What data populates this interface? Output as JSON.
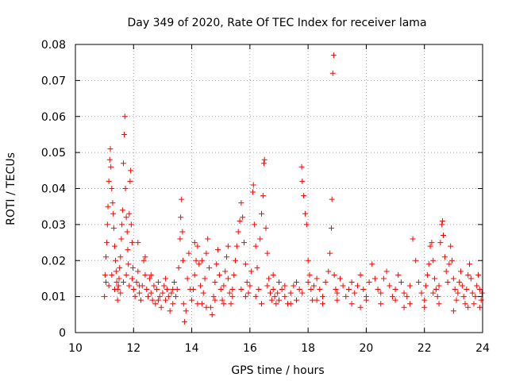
{
  "chart_data": {
    "type": "scatter",
    "title": "Day 349 of 2020, Rate Of TEC Index for receiver lama",
    "xlabel": "GPS time / hours",
    "ylabel": "ROTI / TECUs",
    "xlim": [
      10,
      24
    ],
    "ylim": [
      0,
      0.08
    ],
    "xticks": [
      10,
      12,
      14,
      16,
      18,
      20,
      22,
      24
    ],
    "xtick_labels": [
      "10",
      "12",
      "14",
      "16",
      "18",
      "20",
      "22",
      "24"
    ],
    "yticks": [
      0,
      0.01,
      0.02,
      0.03,
      0.04,
      0.05,
      0.06,
      0.07,
      0.08
    ],
    "ytick_labels": [
      "0",
      "0.01",
      "0.02",
      "0.03",
      "0.04",
      "0.05",
      "0.06",
      "0.07",
      "0.08"
    ],
    "grid": true,
    "marker": "+",
    "marker_color": "#ff0000",
    "series": [
      {
        "name": "ROTI",
        "points": [
          [
            11.0,
            0.01
          ],
          [
            11.02,
            0.016
          ],
          [
            11.05,
            0.021
          ],
          [
            11.08,
            0.025
          ],
          [
            11.1,
            0.03
          ],
          [
            11.12,
            0.035
          ],
          [
            11.15,
            0.042
          ],
          [
            11.18,
            0.048
          ],
          [
            11.2,
            0.051
          ],
          [
            11.22,
            0.046
          ],
          [
            11.25,
            0.04
          ],
          [
            11.28,
            0.036
          ],
          [
            11.3,
            0.033
          ],
          [
            11.32,
            0.029
          ],
          [
            11.35,
            0.024
          ],
          [
            11.38,
            0.02
          ],
          [
            11.4,
            0.017
          ],
          [
            11.42,
            0.014
          ],
          [
            11.45,
            0.012
          ],
          [
            11.48,
            0.013
          ],
          [
            11.5,
            0.015
          ],
          [
            11.52,
            0.018
          ],
          [
            11.55,
            0.021
          ],
          [
            11.58,
            0.026
          ],
          [
            11.6,
            0.03
          ],
          [
            11.62,
            0.034
          ],
          [
            11.65,
            0.047
          ],
          [
            11.68,
            0.055
          ],
          [
            11.7,
            0.06
          ],
          [
            11.72,
            0.04
          ],
          [
            11.75,
            0.032
          ],
          [
            11.78,
            0.028
          ],
          [
            11.8,
            0.023
          ],
          [
            11.82,
            0.019
          ],
          [
            11.85,
            0.033
          ],
          [
            11.88,
            0.042
          ],
          [
            11.9,
            0.045
          ],
          [
            11.92,
            0.03
          ],
          [
            11.95,
            0.025
          ],
          [
            11.98,
            0.018
          ],
          [
            11.05,
            0.014
          ],
          [
            11.15,
            0.013
          ],
          [
            11.25,
            0.016
          ],
          [
            11.35,
            0.012
          ],
          [
            11.45,
            0.009
          ],
          [
            11.55,
            0.011
          ],
          [
            11.65,
            0.014
          ],
          [
            11.75,
            0.016
          ],
          [
            11.85,
            0.013
          ],
          [
            11.95,
            0.015
          ],
          [
            12.0,
            0.012
          ],
          [
            12.05,
            0.01
          ],
          [
            12.1,
            0.014
          ],
          [
            12.15,
            0.017
          ],
          [
            12.2,
            0.011
          ],
          [
            12.25,
            0.009
          ],
          [
            12.3,
            0.013
          ],
          [
            12.35,
            0.02
          ],
          [
            12.4,
            0.016
          ],
          [
            12.45,
            0.012
          ],
          [
            12.5,
            0.01
          ],
          [
            12.55,
            0.015
          ],
          [
            12.6,
            0.011
          ],
          [
            12.65,
            0.009
          ],
          [
            12.7,
            0.013
          ],
          [
            12.75,
            0.008
          ],
          [
            12.8,
            0.012
          ],
          [
            12.85,
            0.014
          ],
          [
            12.9,
            0.01
          ],
          [
            12.95,
            0.007
          ],
          [
            13.0,
            0.011
          ],
          [
            13.05,
            0.013
          ],
          [
            13.1,
            0.009
          ],
          [
            13.15,
            0.012
          ],
          [
            13.2,
            0.01
          ],
          [
            13.25,
            0.006
          ],
          [
            13.3,
            0.011
          ],
          [
            13.35,
            0.008
          ],
          [
            13.4,
            0.014
          ],
          [
            13.45,
            0.01
          ],
          [
            13.5,
            0.012
          ],
          [
            13.55,
            0.018
          ],
          [
            13.6,
            0.026
          ],
          [
            13.62,
            0.032
          ],
          [
            13.65,
            0.037
          ],
          [
            13.68,
            0.028
          ],
          [
            13.7,
            0.02
          ],
          [
            13.72,
            0.008
          ],
          [
            13.75,
            0.003
          ],
          [
            13.8,
            0.006
          ],
          [
            13.85,
            0.015
          ],
          [
            13.9,
            0.022
          ],
          [
            13.95,
            0.012
          ],
          [
            12.15,
            0.025
          ],
          [
            12.4,
            0.021
          ],
          [
            12.2,
            0.013
          ],
          [
            12.6,
            0.016
          ],
          [
            12.85,
            0.009
          ],
          [
            13.1,
            0.015
          ],
          [
            13.35,
            0.012
          ],
          [
            14.0,
            0.009
          ],
          [
            14.05,
            0.012
          ],
          [
            14.1,
            0.016
          ],
          [
            14.15,
            0.02
          ],
          [
            14.2,
            0.024
          ],
          [
            14.25,
            0.019
          ],
          [
            14.3,
            0.013
          ],
          [
            14.35,
            0.008
          ],
          [
            14.4,
            0.011
          ],
          [
            14.45,
            0.015
          ],
          [
            14.5,
            0.022
          ],
          [
            14.55,
            0.026
          ],
          [
            14.6,
            0.018
          ],
          [
            14.65,
            0.007
          ],
          [
            14.7,
            0.005
          ],
          [
            14.75,
            0.01
          ],
          [
            14.8,
            0.014
          ],
          [
            14.85,
            0.019
          ],
          [
            14.9,
            0.023
          ],
          [
            14.95,
            0.016
          ],
          [
            15.0,
            0.012
          ],
          [
            15.05,
            0.009
          ],
          [
            15.1,
            0.013
          ],
          [
            15.15,
            0.017
          ],
          [
            15.2,
            0.021
          ],
          [
            15.25,
            0.015
          ],
          [
            15.3,
            0.011
          ],
          [
            15.35,
            0.008
          ],
          [
            15.4,
            0.012
          ],
          [
            15.45,
            0.016
          ],
          [
            15.5,
            0.02
          ],
          [
            15.55,
            0.024
          ],
          [
            15.6,
            0.028
          ],
          [
            15.65,
            0.031
          ],
          [
            15.7,
            0.036
          ],
          [
            15.75,
            0.032
          ],
          [
            15.8,
            0.025
          ],
          [
            15.85,
            0.019
          ],
          [
            15.9,
            0.014
          ],
          [
            15.95,
            0.011
          ],
          [
            14.2,
            0.008
          ],
          [
            14.5,
            0.007
          ],
          [
            14.8,
            0.009
          ],
          [
            15.1,
            0.008
          ],
          [
            15.4,
            0.01
          ],
          [
            15.7,
            0.012
          ],
          [
            15.25,
            0.024
          ],
          [
            14.35,
            0.02
          ],
          [
            15.85,
            0.01
          ],
          [
            14.1,
            0.025
          ],
          [
            16.0,
            0.013
          ],
          [
            16.05,
            0.017
          ],
          [
            16.1,
            0.039
          ],
          [
            16.12,
            0.041
          ],
          [
            16.15,
            0.03
          ],
          [
            16.2,
            0.024
          ],
          [
            16.25,
            0.018
          ],
          [
            16.3,
            0.012
          ],
          [
            16.35,
            0.026
          ],
          [
            16.4,
            0.033
          ],
          [
            16.45,
            0.038
          ],
          [
            16.48,
            0.047
          ],
          [
            16.5,
            0.048
          ],
          [
            16.55,
            0.029
          ],
          [
            16.6,
            0.022
          ],
          [
            16.65,
            0.015
          ],
          [
            16.7,
            0.011
          ],
          [
            16.75,
            0.009
          ],
          [
            16.8,
            0.012
          ],
          [
            16.85,
            0.01
          ],
          [
            16.9,
            0.008
          ],
          [
            16.95,
            0.011
          ],
          [
            17.0,
            0.009
          ],
          [
            17.1,
            0.012
          ],
          [
            17.2,
            0.01
          ],
          [
            17.3,
            0.008
          ],
          [
            17.4,
            0.011
          ],
          [
            17.5,
            0.013
          ],
          [
            17.6,
            0.009
          ],
          [
            17.7,
            0.012
          ],
          [
            17.78,
            0.046
          ],
          [
            17.8,
            0.042
          ],
          [
            17.85,
            0.038
          ],
          [
            17.9,
            0.033
          ],
          [
            17.95,
            0.03
          ],
          [
            18.0,
            0.02
          ],
          [
            18.05,
            0.016
          ],
          [
            18.1,
            0.012
          ],
          [
            18.15,
            0.009
          ],
          [
            18.2,
            0.013
          ],
          [
            16.2,
            0.01
          ],
          [
            16.4,
            0.008
          ],
          [
            16.6,
            0.013
          ],
          [
            16.8,
            0.016
          ],
          [
            17.0,
            0.014
          ],
          [
            17.2,
            0.013
          ],
          [
            17.4,
            0.008
          ],
          [
            17.6,
            0.014
          ],
          [
            17.8,
            0.011
          ],
          [
            18.0,
            0.014
          ],
          [
            18.3,
            0.015
          ],
          [
            18.4,
            0.012
          ],
          [
            18.5,
            0.01
          ],
          [
            18.6,
            0.014
          ],
          [
            18.7,
            0.017
          ],
          [
            18.75,
            0.022
          ],
          [
            18.8,
            0.029
          ],
          [
            18.82,
            0.037
          ],
          [
            18.85,
            0.072
          ],
          [
            18.88,
            0.077
          ],
          [
            18.9,
            0.016
          ],
          [
            18.95,
            0.012
          ],
          [
            19.0,
            0.011
          ],
          [
            19.1,
            0.015
          ],
          [
            19.2,
            0.013
          ],
          [
            19.3,
            0.01
          ],
          [
            19.4,
            0.012
          ],
          [
            19.5,
            0.014
          ],
          [
            19.6,
            0.011
          ],
          [
            19.7,
            0.013
          ],
          [
            19.8,
            0.016
          ],
          [
            19.9,
            0.012
          ],
          [
            20.0,
            0.01
          ],
          [
            20.1,
            0.014
          ],
          [
            20.2,
            0.019
          ],
          [
            20.3,
            0.015
          ],
          [
            20.4,
            0.012
          ],
          [
            20.5,
            0.011
          ],
          [
            20.6,
            0.015
          ],
          [
            20.7,
            0.017
          ],
          [
            20.8,
            0.013
          ],
          [
            20.9,
            0.01
          ],
          [
            21.0,
            0.012
          ],
          [
            21.1,
            0.016
          ],
          [
            21.2,
            0.014
          ],
          [
            21.3,
            0.011
          ],
          [
            21.4,
            0.01
          ],
          [
            21.5,
            0.013
          ],
          [
            21.6,
            0.026
          ],
          [
            21.7,
            0.02
          ],
          [
            18.5,
            0.008
          ],
          [
            19.0,
            0.009
          ],
          [
            19.5,
            0.008
          ],
          [
            20.0,
            0.009
          ],
          [
            20.5,
            0.008
          ],
          [
            21.0,
            0.009
          ],
          [
            21.5,
            0.008
          ],
          [
            18.3,
            0.009
          ],
          [
            19.8,
            0.007
          ],
          [
            21.3,
            0.007
          ],
          [
            21.8,
            0.014
          ],
          [
            21.9,
            0.011
          ],
          [
            22.0,
            0.009
          ],
          [
            22.05,
            0.013
          ],
          [
            22.1,
            0.016
          ],
          [
            22.15,
            0.019
          ],
          [
            22.2,
            0.024
          ],
          [
            22.25,
            0.025
          ],
          [
            22.3,
            0.02
          ],
          [
            22.35,
            0.015
          ],
          [
            22.4,
            0.012
          ],
          [
            22.45,
            0.01
          ],
          [
            22.5,
            0.013
          ],
          [
            22.55,
            0.025
          ],
          [
            22.6,
            0.03
          ],
          [
            22.62,
            0.031
          ],
          [
            22.65,
            0.027
          ],
          [
            22.7,
            0.021
          ],
          [
            22.75,
            0.017
          ],
          [
            22.8,
            0.014
          ],
          [
            22.85,
            0.019
          ],
          [
            22.9,
            0.024
          ],
          [
            22.95,
            0.02
          ],
          [
            23.0,
            0.015
          ],
          [
            23.05,
            0.012
          ],
          [
            23.1,
            0.009
          ],
          [
            23.15,
            0.011
          ],
          [
            23.2,
            0.014
          ],
          [
            23.25,
            0.017
          ],
          [
            23.3,
            0.013
          ],
          [
            23.35,
            0.01
          ],
          [
            23.4,
            0.008
          ],
          [
            23.45,
            0.012
          ],
          [
            23.5,
            0.016
          ],
          [
            23.55,
            0.019
          ],
          [
            23.6,
            0.015
          ],
          [
            23.65,
            0.011
          ],
          [
            23.7,
            0.008
          ],
          [
            23.75,
            0.01
          ],
          [
            23.8,
            0.013
          ],
          [
            23.85,
            0.016
          ],
          [
            23.9,
            0.012
          ],
          [
            23.95,
            0.009
          ],
          [
            23.98,
            0.011
          ],
          [
            22.0,
            0.007
          ],
          [
            22.5,
            0.008
          ],
          [
            23.0,
            0.006
          ],
          [
            23.5,
            0.007
          ],
          [
            23.9,
            0.007
          ],
          [
            22.3,
            0.011
          ]
        ]
      }
    ]
  }
}
